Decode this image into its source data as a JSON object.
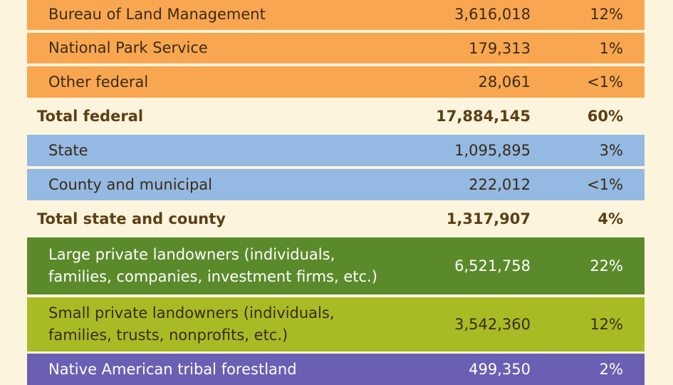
{
  "table": {
    "rows": [
      [
        "Bureau of Land Management",
        "3,616,018",
        "12%"
      ],
      [
        "National Park Service",
        "179,313",
        "1%"
      ],
      [
        "Other federal",
        "28,061",
        "<1%"
      ],
      [
        "Total federal",
        "17,884,145",
        "60%"
      ],
      [
        "State",
        "1,095,895",
        "3%"
      ],
      [
        "County and municipal",
        "222,012",
        "<1%"
      ],
      [
        "Total state and county",
        "1,317,907",
        "4%"
      ],
      [
        "Large private landowners (individuals,\nfamilies, companies, investment firms, etc.)",
        "6,521,758",
        "22%"
      ],
      [
        "Small private landowners (individuals,\nfamilies, trusts, nonprofits, etc.)",
        "3,542,360",
        "12%"
      ],
      [
        "Native American tribal forestland",
        "499,350",
        "2%"
      ]
    ]
  }
}
